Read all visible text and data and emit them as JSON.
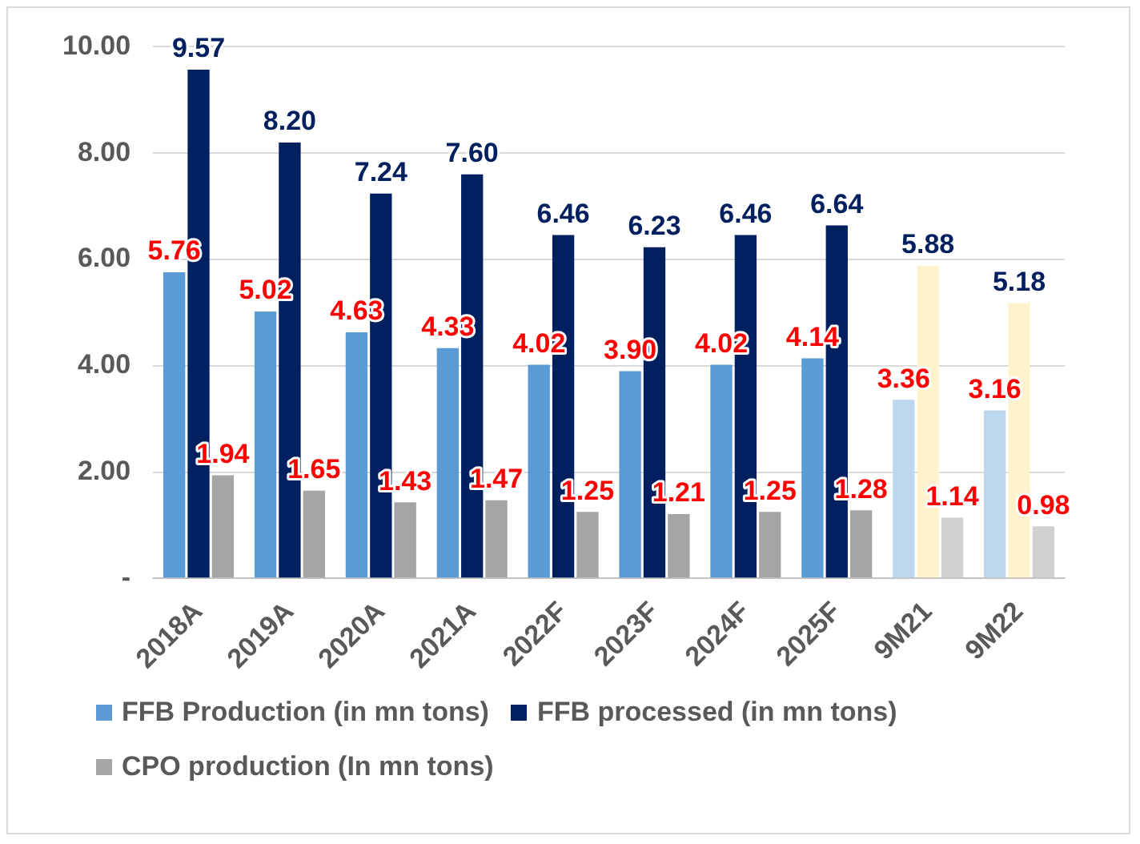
{
  "chart_data": {
    "type": "bar",
    "categories": [
      "2018A",
      "2019A",
      "2020A",
      "2021A",
      "2022F",
      "2023F",
      "2024F",
      "2025F",
      "9M21",
      "9M22"
    ],
    "series": [
      {
        "name": "FFB Production (in mn tons)",
        "color": "#5b9bd5",
        "colors": [
          "#5b9bd5",
          "#5b9bd5",
          "#5b9bd5",
          "#5b9bd5",
          "#5b9bd5",
          "#5b9bd5",
          "#5b9bd5",
          "#5b9bd5",
          "#bdd7ee",
          "#bdd7ee"
        ],
        "values": [
          5.76,
          5.02,
          4.63,
          4.33,
          4.02,
          3.9,
          4.02,
          4.14,
          3.36,
          3.16
        ],
        "value_labels": [
          "5.76",
          "5.02",
          "4.63",
          "4.33",
          "4.02",
          "3.90",
          "4.02",
          "4.14",
          "3.36",
          "3.16"
        ]
      },
      {
        "name": "FFB processed (in mn tons)",
        "color": "#002060",
        "colors": [
          "#002060",
          "#002060",
          "#002060",
          "#002060",
          "#002060",
          "#002060",
          "#002060",
          "#002060",
          "#fff2cc",
          "#fff2cc"
        ],
        "values": [
          9.57,
          8.2,
          7.24,
          7.6,
          6.46,
          6.23,
          6.46,
          6.64,
          5.88,
          5.18
        ],
        "value_labels": [
          "9.57",
          "8.20",
          "7.24",
          "7.60",
          "6.46",
          "6.23",
          "6.46",
          "6.64",
          "5.88",
          "5.18"
        ]
      },
      {
        "name": "CPO production (In mn tons)",
        "color": "#a5a5a5",
        "colors": [
          "#a5a5a5",
          "#a5a5a5",
          "#a5a5a5",
          "#a5a5a5",
          "#a5a5a5",
          "#a5a5a5",
          "#a5a5a5",
          "#a5a5a5",
          "#d0d0d0",
          "#d0d0d0"
        ],
        "values": [
          1.94,
          1.65,
          1.43,
          1.47,
          1.25,
          1.21,
          1.25,
          1.28,
          1.14,
          0.98
        ],
        "value_labels": [
          "1.94",
          "1.65",
          "1.43",
          "1.47",
          "1.25",
          "1.21",
          "1.25",
          "1.28",
          "1.14",
          "0.98"
        ]
      }
    ],
    "ylim": [
      0,
      10
    ],
    "yticks": [
      {
        "value": 0,
        "label": "-"
      },
      {
        "value": 2,
        "label": "2.00"
      },
      {
        "value": 4,
        "label": "4.00"
      },
      {
        "value": 6,
        "label": "6.00"
      },
      {
        "value": 8,
        "label": "8.00"
      },
      {
        "value": 10,
        "label": "10.00"
      }
    ],
    "grid": "y",
    "legend": "bottom"
  }
}
